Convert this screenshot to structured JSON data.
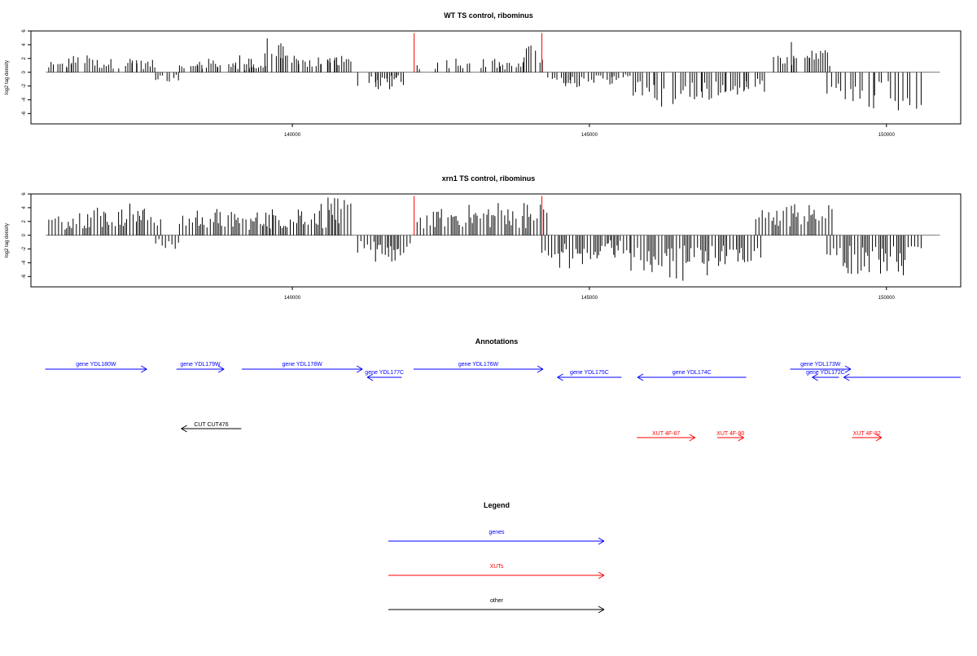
{
  "chart_data": [
    {
      "type": "bar",
      "title": "WT TS control, ribominus",
      "ylabel": "log2 tag density",
      "xlabel": "",
      "ylim": [
        -7.5,
        6
      ],
      "yticks": [
        -6,
        -4,
        -2,
        0,
        2,
        4,
        6
      ],
      "xlim": [
        135600,
        151250
      ],
      "xticks": [
        140000,
        145000,
        150000
      ],
      "grid": false,
      "bar_color": "#000000",
      "marker_color": "#ff0000",
      "markers": [
        {
          "x": 142050,
          "y": 5.7
        },
        {
          "x": 144200,
          "y": 5.7
        }
      ],
      "series": [
        {
          "x": [
            136100,
            136400,
            136800,
            137200,
            137500
          ],
          "values": [
            1.5,
            2.5,
            2,
            2.2,
            1.8
          ]
        },
        {
          "x": [
            137900
          ],
          "values": [
            -1.5
          ]
        },
        {
          "x": [
            138300,
            138600,
            138900,
            139200,
            139400
          ],
          "values": [
            1.2,
            2,
            1.5,
            2.5,
            1
          ]
        },
        {
          "x": [
            139700,
            140000,
            140300,
            140600,
            140800
          ],
          "values": [
            5,
            3,
            2,
            3,
            2.5
          ]
        },
        {
          "x": [
            141300,
            141600,
            141800
          ],
          "values": [
            -2.5,
            -1.5,
            -2.5
          ]
        },
        {
          "x": [
            142300,
            142800,
            143300,
            143700,
            144100
          ],
          "values": [
            1.5,
            2.3,
            2,
            1.5,
            4
          ]
        },
        {
          "x": [
            144500,
            144800,
            145200,
            145500
          ],
          "values": [
            -2,
            -2.5,
            -1.8,
            -1.2
          ]
        },
        {
          "x": [
            145900,
            146300,
            146700,
            147100,
            147500,
            147800
          ],
          "values": [
            -4,
            -5,
            -4.5,
            -4,
            -3.5,
            -3
          ]
        },
        {
          "x": [
            148300,
            148600,
            148900
          ],
          "values": [
            2.5,
            4.5,
            3.5
          ]
        },
        {
          "x": [
            149200,
            149600,
            150000,
            150400
          ],
          "values": [
            -5,
            -5.5,
            -5,
            -6
          ]
        }
      ]
    },
    {
      "type": "bar",
      "title": "xrn1 TS control, ribominus",
      "ylabel": "log2 tag density",
      "xlabel": "",
      "ylim": [
        -7.5,
        6
      ],
      "yticks": [
        -6,
        -4,
        -2,
        0,
        2,
        4,
        6
      ],
      "xlim": [
        135600,
        151250
      ],
      "xticks": [
        140000,
        145000,
        150000
      ],
      "grid": false,
      "bar_color": "#000000",
      "marker_color": "#ff0000",
      "markers": [
        {
          "x": 142050,
          "y": 5.7
        },
        {
          "x": 144200,
          "y": 5.7
        }
      ],
      "series": [
        {
          "x": [
            136100,
            136400,
            136700,
            137000,
            137300,
            137600
          ],
          "values": [
            3,
            4,
            4.5,
            4,
            5,
            4
          ]
        },
        {
          "x": [
            137900
          ],
          "values": [
            -2
          ]
        },
        {
          "x": [
            138300,
            138600,
            138900,
            139200,
            139500
          ],
          "values": [
            3.5,
            4,
            3.5,
            3,
            3.5
          ]
        },
        {
          "x": [
            139700,
            140000,
            140300,
            140600,
            140800
          ],
          "values": [
            4,
            3.5,
            5,
            4,
            5.5
          ]
        },
        {
          "x": [
            141300,
            141600,
            141800
          ],
          "values": [
            -3,
            -4,
            -3
          ]
        },
        {
          "x": [
            142300,
            142600,
            142900,
            143200,
            143500,
            143800,
            144100
          ],
          "values": [
            3.5,
            4,
            4.5,
            4,
            5,
            4,
            5
          ]
        },
        {
          "x": [
            144400,
            144700,
            145000,
            145300,
            145500
          ],
          "values": [
            -4,
            -5,
            -4,
            -3.5,
            -3
          ]
        },
        {
          "x": [
            145900,
            146200,
            146500,
            146800,
            147100,
            147400,
            147700
          ],
          "values": [
            -5.5,
            -6,
            -7,
            -6,
            -5,
            -5,
            -4
          ]
        },
        {
          "x": [
            148000,
            148300,
            148600,
            148900
          ],
          "values": [
            4,
            4.5,
            5,
            4.5
          ]
        },
        {
          "x": [
            149200,
            149500,
            149800,
            150100,
            150400
          ],
          "values": [
            -5,
            -6,
            -5.5,
            -6,
            -5.5
          ]
        }
      ]
    }
  ],
  "annotations": {
    "title": "Annotations",
    "genes": [
      {
        "label": "gene YDL180W",
        "start": 135840,
        "end": 137550,
        "dir": "right",
        "lane": 0
      },
      {
        "label": "gene YDL179W",
        "start": 138050,
        "end": 138850,
        "dir": "right",
        "lane": 0
      },
      {
        "label": "gene YDL178W",
        "start": 139150,
        "end": 141180,
        "dir": "right",
        "lane": 0
      },
      {
        "label": "gene YDL177C",
        "start": 141260,
        "end": 141840,
        "dir": "left",
        "lane": 1
      },
      {
        "label": "gene YDL176W",
        "start": 142040,
        "end": 144220,
        "dir": "right",
        "lane": 0
      },
      {
        "label": "gene YDL175C",
        "start": 144460,
        "end": 145540,
        "dir": "left",
        "lane": 1
      },
      {
        "label": "gene YDL174C",
        "start": 145810,
        "end": 147640,
        "dir": "left",
        "lane": 1
      },
      {
        "label": "gene YDL173W",
        "start": 148380,
        "end": 149400,
        "dir": "right",
        "lane": 0
      },
      {
        "label": "gene YDL172C",
        "start": 148750,
        "end": 149200,
        "dir": "left",
        "lane": 1
      },
      {
        "label": "",
        "start": 149280,
        "end": 151250,
        "dir": "left",
        "lane": 1
      }
    ],
    "xuts": [
      {
        "label": "XUT 4F-87",
        "start": 145800,
        "end": 146780,
        "dir": "right"
      },
      {
        "label": "XUT 4F-90",
        "start": 147150,
        "end": 147600,
        "dir": "right"
      },
      {
        "label": "XUT 4F-82",
        "start": 149420,
        "end": 149920,
        "dir": "right"
      }
    ],
    "other": [
      {
        "label": "CUT CUT476",
        "start": 138130,
        "end": 139140,
        "dir": "left"
      }
    ]
  },
  "legend": {
    "title": "Legend",
    "items": [
      {
        "label": "genes",
        "color": "#0000ff"
      },
      {
        "label": "XUTs",
        "color": "#ff0000"
      },
      {
        "label": "other",
        "color": "#000000"
      }
    ]
  },
  "colors": {
    "genes": "#0000ff",
    "xuts": "#ff0000",
    "other": "#000000"
  }
}
